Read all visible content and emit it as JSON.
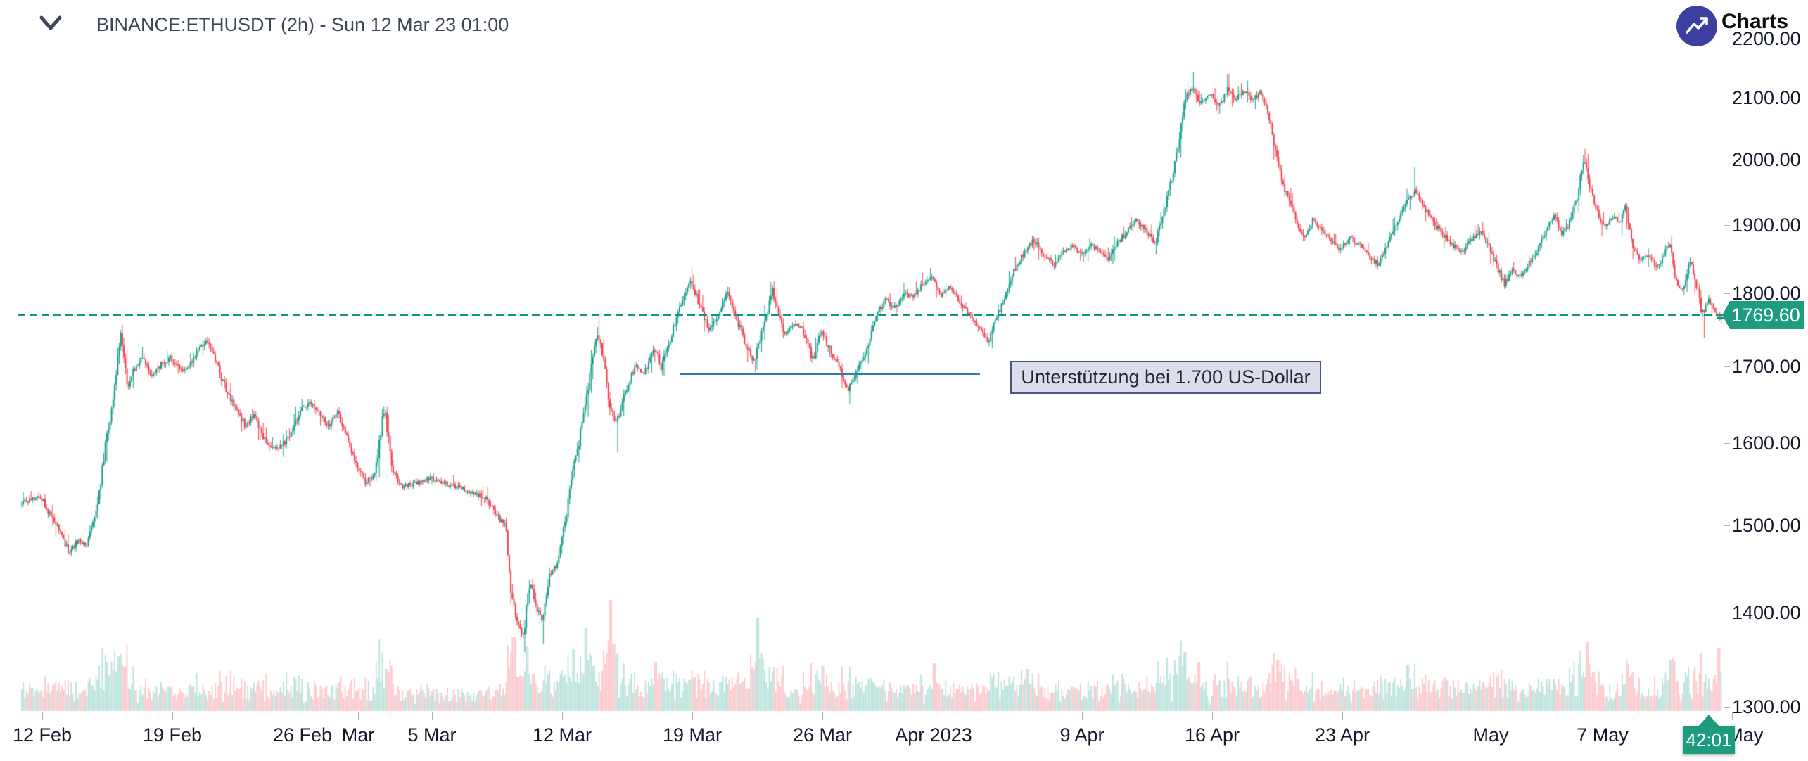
{
  "header": {
    "symbol_title": "BINANCE:ETHUSDT (2h) - Sun 12 Mar 23 01:00"
  },
  "branding": {
    "label": "Charts by",
    "icon": "trending-up-icon",
    "circle_color": "#3b3f9e"
  },
  "annotation": {
    "text": "Unterstützung bei 1.700 US-Dollar"
  },
  "price_badge": {
    "value": "1769.60"
  },
  "countdown": {
    "value": "42:01"
  },
  "colors": {
    "up": "#089981",
    "down": "#f23645",
    "vol_up": "rgba(8,153,129,0.27)",
    "vol_down": "rgba(242,54,69,0.27)",
    "price_line": "#089981",
    "badge": "#1e9c80",
    "support_line": "#2e7cb4"
  },
  "axes": {
    "price": {
      "labels": [
        {
          "text": "2200.00",
          "value": 2200
        },
        {
          "text": "2100.00",
          "value": 2100
        },
        {
          "text": "2000.00",
          "value": 2000
        },
        {
          "text": "1900.00",
          "value": 1900
        },
        {
          "text": "1800.00",
          "value": 1800
        },
        {
          "text": "1700.00",
          "value": 1700
        },
        {
          "text": "1600.00",
          "value": 1600
        },
        {
          "text": "1500.00",
          "value": 1500
        },
        {
          "text": "1400.00",
          "value": 1400
        },
        {
          "text": "1300.00",
          "value": 1300
        }
      ]
    },
    "time": {
      "labels": [
        {
          "text": "12 Feb",
          "day": 0
        },
        {
          "text": "19 Feb",
          "day": 7
        },
        {
          "text": "26 Feb",
          "day": 14
        },
        {
          "text": "Mar",
          "day": 17
        },
        {
          "text": "5 Mar",
          "day": 21
        },
        {
          "text": "12 Mar",
          "day": 28
        },
        {
          "text": "19 Mar",
          "day": 35
        },
        {
          "text": "26 Mar",
          "day": 42
        },
        {
          "text": "Apr 2023",
          "day": 48
        },
        {
          "text": "9 Apr",
          "day": 56
        },
        {
          "text": "16 Apr",
          "day": 63
        },
        {
          "text": "23 Apr",
          "day": 70
        },
        {
          "text": "May",
          "day": 78
        },
        {
          "text": "7 May",
          "day": 84
        },
        {
          "text": "14 May",
          "day": 91
        }
      ]
    }
  },
  "chart_data": {
    "type": "candlestick",
    "symbol": "BINANCE:ETHUSDT",
    "interval": "2h",
    "scale": "log",
    "x_range": [
      "2023-02-11",
      "2023-05-13"
    ],
    "y_domain": [
      1295,
      2268
    ],
    "current_price": 1769.6,
    "support_level_label": 1700,
    "support_line": {
      "price": 1690,
      "day_start": 34.35,
      "day_end": 50.5
    },
    "price_path": [
      [
        -1.2,
        1524
      ],
      [
        0,
        1535
      ],
      [
        0.5,
        1512
      ],
      [
        1,
        1494
      ],
      [
        1.5,
        1468
      ],
      [
        2,
        1482
      ],
      [
        2.5,
        1476
      ],
      [
        3,
        1516
      ],
      [
        3.5,
        1598
      ],
      [
        4,
        1672
      ],
      [
        4.3,
        1744
      ],
      [
        4.7,
        1672
      ],
      [
        5,
        1694
      ],
      [
        5.5,
        1714
      ],
      [
        6,
        1686
      ],
      [
        6.5,
        1702
      ],
      [
        7,
        1712
      ],
      [
        7.5,
        1694
      ],
      [
        8,
        1702
      ],
      [
        8.5,
        1722
      ],
      [
        9,
        1734
      ],
      [
        9.5,
        1702
      ],
      [
        10,
        1666
      ],
      [
        10.5,
        1646
      ],
      [
        11,
        1622
      ],
      [
        11.5,
        1636
      ],
      [
        12,
        1608
      ],
      [
        12.5,
        1592
      ],
      [
        13,
        1597
      ],
      [
        13.5,
        1612
      ],
      [
        14,
        1641
      ],
      [
        14.5,
        1652
      ],
      [
        15,
        1636
      ],
      [
        15.5,
        1622
      ],
      [
        16,
        1638
      ],
      [
        16.5,
        1606
      ],
      [
        17,
        1572
      ],
      [
        17.5,
        1552
      ],
      [
        18,
        1562
      ],
      [
        18.5,
        1645
      ],
      [
        19,
        1562
      ],
      [
        19.5,
        1546
      ],
      [
        20,
        1549
      ],
      [
        21,
        1556
      ],
      [
        22,
        1548
      ],
      [
        23,
        1541
      ],
      [
        24,
        1532
      ],
      [
        24.5,
        1512
      ],
      [
        25,
        1501
      ],
      [
        25.35,
        1422
      ],
      [
        25.65,
        1392
      ],
      [
        26,
        1376
      ],
      [
        26.35,
        1438
      ],
      [
        26.65,
        1408
      ],
      [
        27,
        1388
      ],
      [
        27.4,
        1443
      ],
      [
        27.8,
        1454
      ],
      [
        28.2,
        1498
      ],
      [
        28.6,
        1558
      ],
      [
        29,
        1604
      ],
      [
        29.35,
        1650
      ],
      [
        29.65,
        1702
      ],
      [
        29.95,
        1746
      ],
      [
        30.25,
        1718
      ],
      [
        30.6,
        1652
      ],
      [
        31,
        1626
      ],
      [
        31.5,
        1668
      ],
      [
        32,
        1700
      ],
      [
        32.5,
        1688
      ],
      [
        33,
        1728
      ],
      [
        33.4,
        1699
      ],
      [
        34,
        1745
      ],
      [
        34.5,
        1788
      ],
      [
        35,
        1818
      ],
      [
        35.5,
        1782
      ],
      [
        36,
        1749
      ],
      [
        36.5,
        1772
      ],
      [
        37,
        1802
      ],
      [
        37.5,
        1762
      ],
      [
        38,
        1728
      ],
      [
        38.4,
        1706
      ],
      [
        39,
        1762
      ],
      [
        39.4,
        1806
      ],
      [
        40,
        1743
      ],
      [
        40.5,
        1758
      ],
      [
        41,
        1750
      ],
      [
        41.6,
        1707
      ],
      [
        42,
        1748
      ],
      [
        42.5,
        1722
      ],
      [
        43,
        1698
      ],
      [
        43.5,
        1669
      ],
      [
        44,
        1694
      ],
      [
        44.5,
        1722
      ],
      [
        45,
        1772
      ],
      [
        45.5,
        1790
      ],
      [
        46,
        1781
      ],
      [
        46.5,
        1800
      ],
      [
        47,
        1795
      ],
      [
        47.5,
        1814
      ],
      [
        48,
        1822
      ],
      [
        48.5,
        1798
      ],
      [
        49,
        1810
      ],
      [
        49.5,
        1788
      ],
      [
        50,
        1772
      ],
      [
        50.5,
        1752
      ],
      [
        51,
        1731
      ],
      [
        51.5,
        1768
      ],
      [
        52,
        1801
      ],
      [
        52.5,
        1838
      ],
      [
        53,
        1861
      ],
      [
        53.5,
        1878
      ],
      [
        54,
        1856
      ],
      [
        54.5,
        1841
      ],
      [
        55,
        1858
      ],
      [
        55.5,
        1868
      ],
      [
        56,
        1858
      ],
      [
        56.5,
        1869
      ],
      [
        57,
        1862
      ],
      [
        57.5,
        1848
      ],
      [
        58,
        1873
      ],
      [
        58.5,
        1891
      ],
      [
        59,
        1906
      ],
      [
        59.5,
        1893
      ],
      [
        60,
        1871
      ],
      [
        60.4,
        1912
      ],
      [
        60.8,
        1957
      ],
      [
        61.2,
        2012
      ],
      [
        61.6,
        2096
      ],
      [
        62,
        2118
      ],
      [
        62.4,
        2092
      ],
      [
        63,
        2106
      ],
      [
        63.5,
        2086
      ],
      [
        63.9,
        2118
      ],
      [
        64.3,
        2096
      ],
      [
        64.8,
        2112
      ],
      [
        65.2,
        2098
      ],
      [
        65.7,
        2108
      ],
      [
        66.1,
        2078
      ],
      [
        66.45,
        2018
      ],
      [
        66.8,
        1966
      ],
      [
        67.2,
        1941
      ],
      [
        67.6,
        1906
      ],
      [
        68,
        1882
      ],
      [
        68.5,
        1906
      ],
      [
        69,
        1891
      ],
      [
        69.5,
        1876
      ],
      [
        70,
        1863
      ],
      [
        70.5,
        1881
      ],
      [
        71,
        1871
      ],
      [
        71.5,
        1856
      ],
      [
        72,
        1841
      ],
      [
        72.5,
        1872
      ],
      [
        73,
        1902
      ],
      [
        73.5,
        1934
      ],
      [
        74,
        1952
      ],
      [
        74.5,
        1926
      ],
      [
        75,
        1902
      ],
      [
        75.5,
        1886
      ],
      [
        76,
        1871
      ],
      [
        76.5,
        1858
      ],
      [
        77,
        1876
      ],
      [
        77.5,
        1891
      ],
      [
        78,
        1868
      ],
      [
        78.4,
        1838
      ],
      [
        78.8,
        1814
      ],
      [
        79.2,
        1832
      ],
      [
        79.6,
        1822
      ],
      [
        80,
        1838
      ],
      [
        80.5,
        1858
      ],
      [
        81,
        1888
      ],
      [
        81.5,
        1916
      ],
      [
        81.9,
        1886
      ],
      [
        82.3,
        1902
      ],
      [
        82.7,
        1938
      ],
      [
        83.1,
        2002
      ],
      [
        83.35,
        1962
      ],
      [
        83.8,
        1921
      ],
      [
        84.2,
        1896
      ],
      [
        84.6,
        1912
      ],
      [
        85,
        1902
      ],
      [
        85.3,
        1928
      ],
      [
        85.7,
        1868
      ],
      [
        86.1,
        1846
      ],
      [
        86.5,
        1855
      ],
      [
        87,
        1838
      ],
      [
        87.4,
        1852
      ],
      [
        87.7,
        1876
      ],
      [
        88,
        1818
      ],
      [
        88.4,
        1806
      ],
      [
        88.8,
        1846
      ],
      [
        89.1,
        1820
      ],
      [
        89.45,
        1772
      ],
      [
        89.8,
        1790
      ],
      [
        90.1,
        1778
      ],
      [
        90.42,
        1769.6
      ]
    ],
    "wick_events": [
      [
        4.3,
        "h",
        1756
      ],
      [
        26.0,
        "l",
        1357
      ],
      [
        27.0,
        "l",
        1366
      ],
      [
        29.95,
        "h",
        1771
      ],
      [
        31.0,
        "l",
        1588
      ],
      [
        35.0,
        "h",
        1838
      ],
      [
        38.4,
        "l",
        1692
      ],
      [
        43.5,
        "l",
        1650
      ],
      [
        62.0,
        "h",
        2142
      ],
      [
        63.9,
        "h",
        2140
      ],
      [
        73.9,
        "h",
        1988
      ],
      [
        83.1,
        "h",
        2017
      ],
      [
        87.7,
        "h",
        1884
      ],
      [
        89.45,
        "l",
        1738
      ]
    ],
    "volume_spikes": [
      [
        4.1,
        78
      ],
      [
        18.5,
        60
      ],
      [
        25.4,
        105
      ],
      [
        26.1,
        92
      ],
      [
        28.6,
        88
      ],
      [
        29.3,
        118
      ],
      [
        30.6,
        158
      ],
      [
        33.0,
        70
      ],
      [
        38.5,
        133
      ],
      [
        42.0,
        64
      ],
      [
        48.0,
        68
      ],
      [
        53.0,
        60
      ],
      [
        61.5,
        84
      ],
      [
        62.3,
        70
      ],
      [
        66.5,
        72
      ],
      [
        73.5,
        66
      ],
      [
        83.2,
        98
      ],
      [
        87.7,
        72
      ],
      [
        90.3,
        90
      ]
    ]
  }
}
